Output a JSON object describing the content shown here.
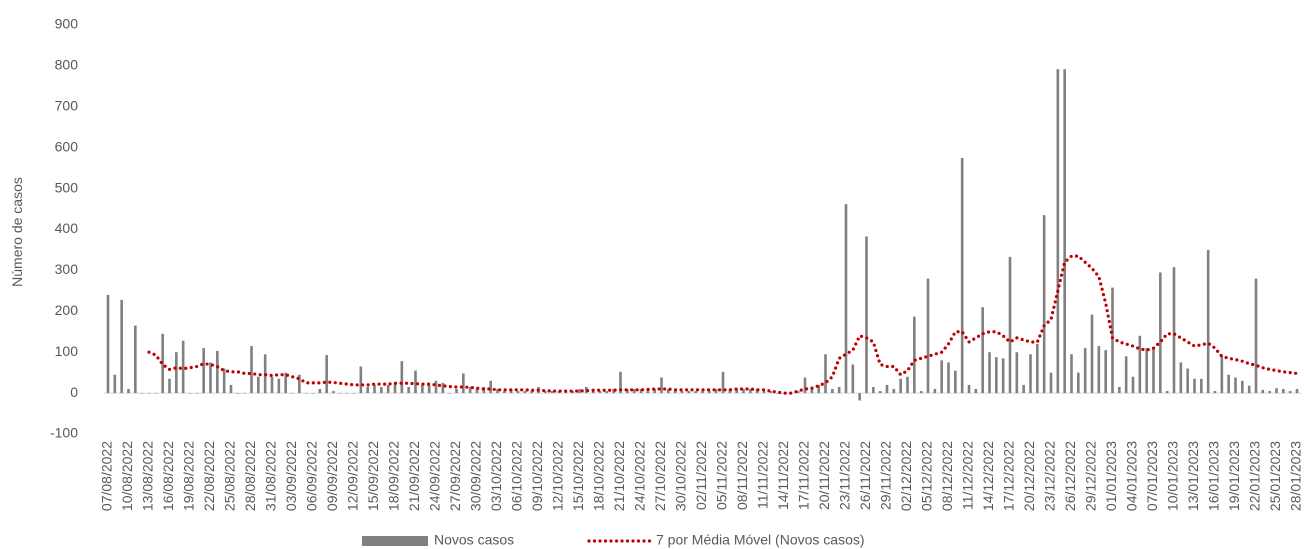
{
  "chart_data": {
    "type": "combo",
    "y_label": "Número de casos",
    "ylim": [
      -100,
      900
    ],
    "yticks": [
      -100,
      0,
      100,
      200,
      300,
      400,
      500,
      600,
      700,
      800,
      900
    ],
    "grid": false,
    "legend": "bottom",
    "categories": [
      "07/08/2022",
      null,
      null,
      "10/08/2022",
      null,
      null,
      "13/08/2022",
      null,
      null,
      "16/08/2022",
      null,
      null,
      "19/08/2022",
      null,
      null,
      "22/08/2022",
      null,
      null,
      "25/08/2022",
      null,
      null,
      "28/08/2022",
      null,
      null,
      "31/08/2022",
      null,
      null,
      "03/09/2022",
      null,
      null,
      "06/09/2022",
      null,
      null,
      "09/09/2022",
      null,
      null,
      "12/09/2022",
      null,
      null,
      "15/09/2022",
      null,
      null,
      "18/09/2022",
      null,
      null,
      "21/09/2022",
      null,
      null,
      "24/09/2022",
      null,
      null,
      "27/09/2022",
      null,
      null,
      "30/09/2022",
      null,
      null,
      "03/10/2022",
      null,
      null,
      "06/10/2022",
      null,
      null,
      "09/10/2022",
      null,
      null,
      "12/10/2022",
      null,
      null,
      "15/10/2022",
      null,
      null,
      "18/10/2022",
      null,
      null,
      "21/10/2022",
      null,
      null,
      "24/10/2022",
      null,
      null,
      "27/10/2022",
      null,
      null,
      "30/10/2022",
      null,
      null,
      "02/11/2022",
      null,
      null,
      "05/11/2022",
      null,
      null,
      "08/11/2022",
      null,
      null,
      "11/11/2022",
      null,
      null,
      "14/11/2022",
      null,
      null,
      "17/11/2022",
      null,
      null,
      "20/11/2022",
      null,
      null,
      "23/11/2022",
      null,
      null,
      "26/11/2022",
      null,
      null,
      "29/11/2022",
      null,
      null,
      "02/12/2022",
      null,
      null,
      "05/12/2022",
      null,
      null,
      "08/12/2022",
      null,
      null,
      "11/12/2022",
      null,
      null,
      "14/12/2022",
      null,
      null,
      "17/12/2022",
      null,
      null,
      "20/12/2022",
      null,
      null,
      "23/12/2022",
      null,
      null,
      "26/12/2022",
      null,
      null,
      "29/12/2022",
      null,
      null,
      "01/01/2023",
      null,
      null,
      "04/01/2023",
      null,
      null,
      "07/01/2023",
      null,
      null,
      "10/01/2023",
      null,
      null,
      "13/01/2023",
      null,
      null,
      "16/01/2023",
      null,
      null,
      "19/01/2023",
      null,
      null,
      "22/01/2023",
      null,
      null,
      "25/01/2023",
      null,
      null,
      "28/01/2023"
    ],
    "series": [
      {
        "name": "Novos casos",
        "type": "bar",
        "color": "#808080",
        "values": [
          240,
          45,
          228,
          10,
          165,
          0,
          0,
          0,
          145,
          35,
          100,
          128,
          0,
          0,
          110,
          75,
          103,
          60,
          20,
          0,
          0,
          115,
          40,
          95,
          40,
          35,
          50,
          0,
          45,
          0,
          0,
          10,
          93,
          5,
          0,
          0,
          0,
          65,
          15,
          20,
          15,
          20,
          25,
          78,
          15,
          55,
          20,
          20,
          30,
          25,
          0,
          10,
          48,
          15,
          10,
          15,
          30,
          10,
          5,
          10,
          5,
          5,
          5,
          15,
          5,
          5,
          5,
          5,
          5,
          10,
          15,
          5,
          5,
          5,
          10,
          52,
          10,
          10,
          10,
          10,
          10,
          38,
          10,
          5,
          5,
          5,
          5,
          5,
          5,
          10,
          52,
          10,
          10,
          10,
          10,
          10,
          5,
          5,
          0,
          0,
          0,
          5,
          38,
          15,
          20,
          95,
          10,
          15,
          462,
          70,
          -18,
          383,
          15,
          5,
          20,
          10,
          35,
          40,
          187,
          5,
          280,
          10,
          80,
          75,
          55,
          575,
          20,
          10,
          210,
          100,
          88,
          85,
          333,
          100,
          20,
          95,
          120,
          435,
          50,
          792,
          792,
          95,
          50,
          110,
          192,
          115,
          105,
          258,
          15,
          90,
          40,
          140,
          110,
          110,
          295,
          5,
          308,
          75,
          60,
          35,
          35,
          350,
          5,
          90,
          45,
          38,
          30,
          18,
          280,
          8,
          5,
          12,
          10,
          5,
          10
        ]
      },
      {
        "name": "7 por Média Móvel (Novos casos)",
        "type": "line",
        "color": "#c00000",
        "values": [
          null,
          null,
          null,
          null,
          null,
          null,
          100,
          93,
          70,
          58,
          62,
          60,
          62,
          65,
          72,
          70,
          65,
          55,
          52,
          52,
          48,
          48,
          45,
          45,
          43,
          45,
          45,
          40,
          35,
          25,
          25,
          25,
          27,
          26,
          24,
          22,
          20,
          20,
          20,
          22,
          22,
          22,
          24,
          24,
          24,
          23,
          22,
          22,
          20,
          18,
          16,
          15,
          15,
          14,
          12,
          10,
          10,
          8,
          8,
          8,
          8,
          8,
          7,
          7,
          6,
          5,
          5,
          5,
          5,
          5,
          6,
          7,
          7,
          7,
          7,
          8,
          8,
          8,
          8,
          9,
          10,
          10,
          10,
          8,
          8,
          8,
          8,
          8,
          8,
          8,
          8,
          8,
          10,
          10,
          10,
          8,
          8,
          5,
          2,
          0,
          0,
          5,
          10,
          12,
          18,
          25,
          40,
          85,
          95,
          105,
          140,
          135,
          125,
          70,
          65,
          65,
          45,
          55,
          80,
          85,
          90,
          95,
          100,
          120,
          150,
          150,
          125,
          135,
          145,
          150,
          150,
          140,
          125,
          135,
          130,
          125,
          125,
          165,
          180,
          250,
          320,
          335,
          335,
          320,
          305,
          285,
          220,
          135,
          125,
          120,
          115,
          108,
          105,
          110,
          125,
          145,
          145,
          135,
          125,
          115,
          118,
          122,
          110,
          90,
          85,
          82,
          78,
          72,
          68,
          62,
          58,
          55,
          52,
          50,
          48
        ]
      }
    ]
  }
}
